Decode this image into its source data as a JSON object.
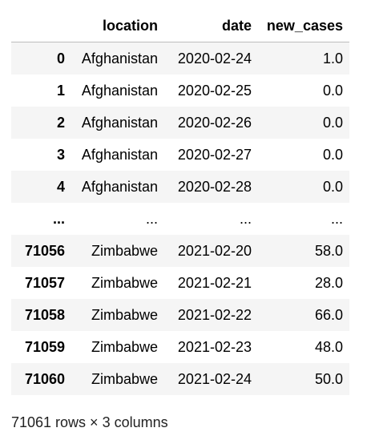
{
  "table": {
    "headers": [
      "",
      "location",
      "date",
      "new_cases"
    ],
    "rows": [
      [
        "0",
        "Afghanistan",
        "2020-02-24",
        "1.0"
      ],
      [
        "1",
        "Afghanistan",
        "2020-02-25",
        "0.0"
      ],
      [
        "2",
        "Afghanistan",
        "2020-02-26",
        "0.0"
      ],
      [
        "3",
        "Afghanistan",
        "2020-02-27",
        "0.0"
      ],
      [
        "4",
        "Afghanistan",
        "2020-02-28",
        "0.0"
      ],
      [
        "...",
        "...",
        "...",
        "..."
      ],
      [
        "71056",
        "Zimbabwe",
        "2021-02-20",
        "58.0"
      ],
      [
        "71057",
        "Zimbabwe",
        "2021-02-21",
        "28.0"
      ],
      [
        "71058",
        "Zimbabwe",
        "2021-02-22",
        "66.0"
      ],
      [
        "71059",
        "Zimbabwe",
        "2021-02-23",
        "48.0"
      ],
      [
        "71060",
        "Zimbabwe",
        "2021-02-24",
        "50.0"
      ]
    ]
  },
  "footer": "71061 rows × 3 columns"
}
